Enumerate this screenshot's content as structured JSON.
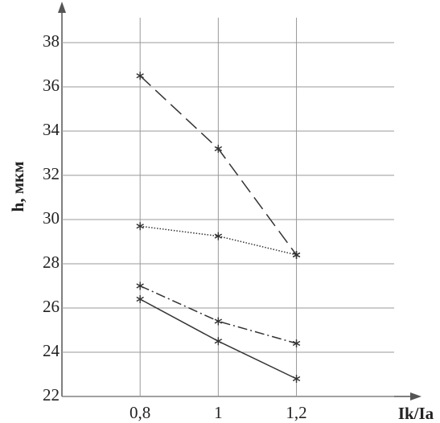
{
  "chart_data": {
    "type": "line",
    "x_label": "Ik/Ia",
    "y_label": "h, мкм",
    "x": [
      0.8,
      1,
      1.2
    ],
    "xlim": [
      0.6,
      1.45
    ],
    "ylim": [
      22,
      38
    ],
    "xticks": [
      {
        "value": 0.8,
        "label": "0,8"
      },
      1,
      {
        "value": 1.2,
        "label": "1,2"
      }
    ],
    "yticks": [
      22,
      24,
      26,
      28,
      30,
      32,
      34,
      36,
      38
    ],
    "grid": true,
    "series": [
      {
        "color": "#333333",
        "dash": "18 8",
        "values": [
          36.5,
          33.2,
          28.4
        ]
      },
      {
        "color": "#333333",
        "dash": "1.5 2",
        "values": [
          29.7,
          29.25,
          28.4
        ]
      },
      {
        "color": "#333333",
        "dash": "12 4 2 4",
        "values": [
          27.0,
          25.4,
          24.4
        ]
      },
      {
        "color": "#333333",
        "dash": "",
        "values": [
          26.4,
          24.5,
          22.8
        ]
      }
    ]
  }
}
